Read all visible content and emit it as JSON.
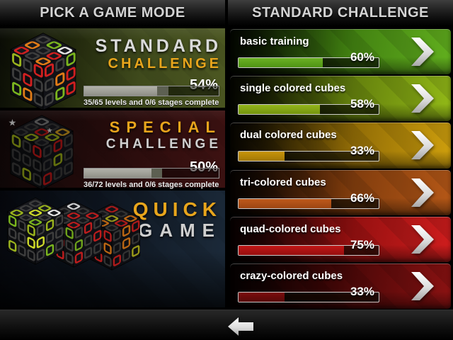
{
  "colors": {
    "gold": "#e8a51c",
    "silver": "#d8d8d8",
    "header_text": "#d4d4d4",
    "challenge_green": "#62b01e",
    "challenge_yellow_green": "#93ba17",
    "challenge_amber": "#cfa00d",
    "challenge_burnt_orange": "#b65817",
    "challenge_red": "#d01d1d",
    "challenge_dark_red": "#8c1212",
    "mode_progress_gray": "#a3a39b"
  },
  "left_panel": {
    "header": "PICK A GAME MODE",
    "modes": [
      {
        "title_line1": "STANDARD",
        "title_line2": "CHALLENGE",
        "percent": 54,
        "percent_label": "54%",
        "detail": "35/65 levels and 0/6 stages complete"
      },
      {
        "title_line1": "SPECIAL",
        "title_line2": "CHALLENGE",
        "percent": 50,
        "percent_label": "50%",
        "detail": "36/72 levels and 0/6 stages complete"
      },
      {
        "title_line1": "QUICK",
        "title_line2": "GAME"
      }
    ]
  },
  "right_panel": {
    "header": "STANDARD CHALLENGE",
    "challenges": [
      {
        "label": "basic training",
        "percent": 60,
        "percent_label": "60%"
      },
      {
        "label": "single colored cubes",
        "percent": 58,
        "percent_label": "58%"
      },
      {
        "label": "dual colored cubes",
        "percent": 33,
        "percent_label": "33%"
      },
      {
        "label": "tri-colored cubes",
        "percent": 66,
        "percent_label": "66%"
      },
      {
        "label": "quad-colored cubes",
        "percent": 75,
        "percent_label": "75%"
      },
      {
        "label": "crazy-colored cubes",
        "percent": 33,
        "percent_label": "33%"
      }
    ]
  },
  "icons": {
    "challenge_arrow": "chevron-right-icon",
    "back": "back-arrow-icon",
    "mode_art": "rubik-cube-art"
  }
}
